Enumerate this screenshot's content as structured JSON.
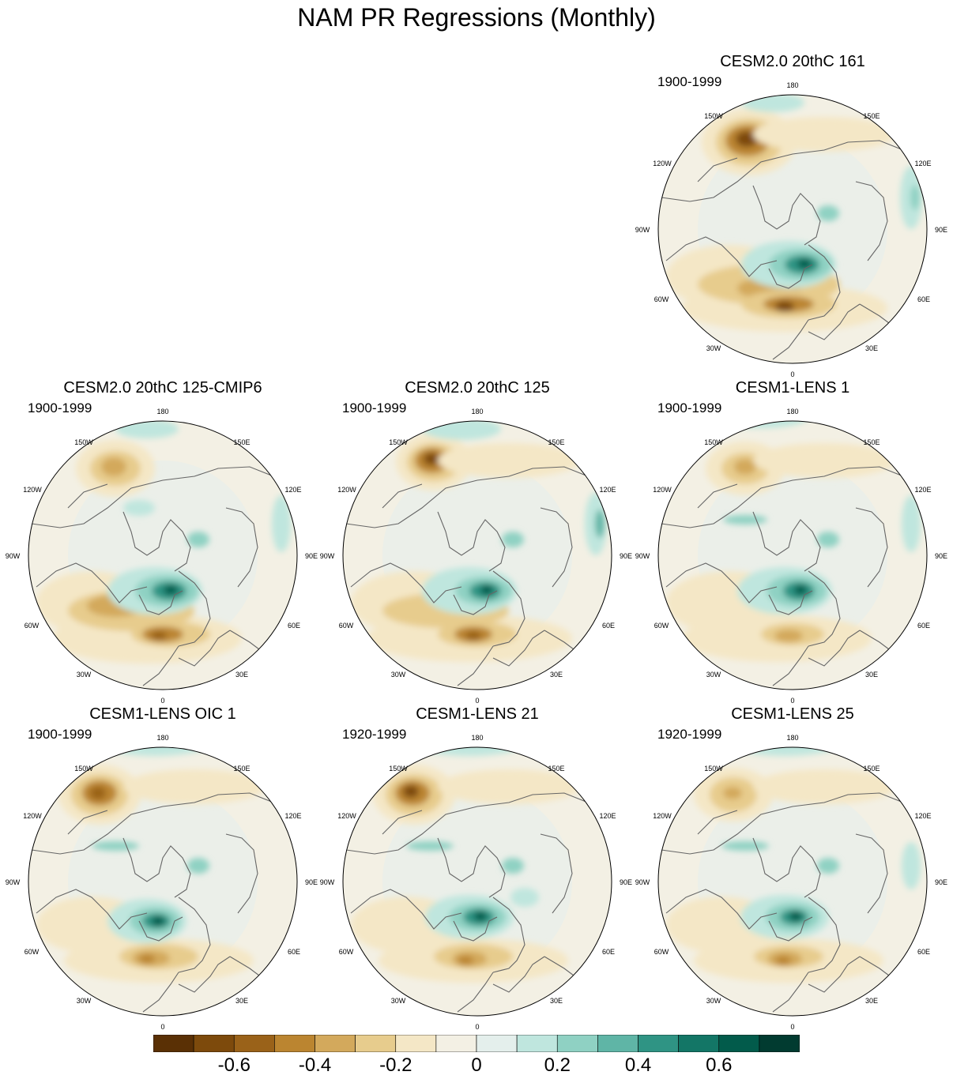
{
  "title": "NAM PR Regressions (Monthly)",
  "map_labels": {
    "top": "180",
    "bottom": "0",
    "upper_left": "150W",
    "upper_right": "150E",
    "mid_upper_left": "120W",
    "mid_upper_right": "120E",
    "left": "90W",
    "right": "90E",
    "mid_lower_left": "60W",
    "mid_lower_right": "60E",
    "lower_left": "30W",
    "lower_right": "30E"
  },
  "panels": [
    {
      "title": "CESM2.0 20thC 161",
      "period": "1900-1999"
    },
    {
      "title": "CESM2.0 20thC 125-CMIP6",
      "period": "1900-1999"
    },
    {
      "title": "CESM2.0 20thC 125",
      "period": "1900-1999"
    },
    {
      "title": "CESM1-LENS 1",
      "period": "1900-1999"
    },
    {
      "title": "CESM1-LENS OIC 1",
      "period": "1900-1999"
    },
    {
      "title": "CESM1-LENS 21",
      "period": "1920-1999"
    },
    {
      "title": "CESM1-LENS 25",
      "period": "1920-1999"
    }
  ],
  "colorbar": {
    "colors": [
      "#5a3005",
      "#7d4a0c",
      "#9a6219",
      "#bb8530",
      "#d3a95c",
      "#e7cc8d",
      "#f4e7c6",
      "#f3f0e4",
      "#e4efec",
      "#bfe6de",
      "#8fd1c3",
      "#5fb5a6",
      "#2f9484",
      "#137666",
      "#025b4b",
      "#013b30"
    ],
    "tick_labels": [
      "-0.6",
      "-0.4",
      "-0.2",
      "0",
      "0.2",
      "0.4",
      "0.6"
    ]
  }
}
